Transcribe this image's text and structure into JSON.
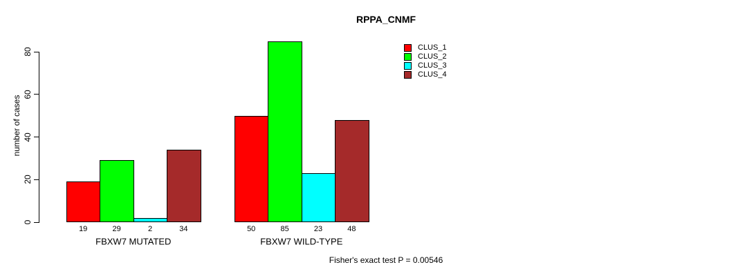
{
  "chart_data": {
    "type": "bar",
    "title": "RPPA_CNMF",
    "xlabel": "",
    "ylabel": "number of cases",
    "ylim": [
      0,
      85
    ],
    "yticks": [
      0,
      20,
      40,
      60,
      80
    ],
    "grid": false,
    "legend_position": "top-right",
    "groups": [
      "FBXW7 MUTATED",
      "FBXW7 WILD-TYPE"
    ],
    "series": [
      {
        "name": "CLUS_1",
        "color": "#FF0000",
        "values": [
          19,
          50
        ]
      },
      {
        "name": "CLUS_2",
        "color": "#00FF00",
        "values": [
          29,
          85
        ]
      },
      {
        "name": "CLUS_3",
        "color": "#00FFFF",
        "values": [
          2,
          23
        ]
      },
      {
        "name": "CLUS_4",
        "color": "#A52A2A",
        "values": [
          34,
          48
        ]
      }
    ],
    "bar_value_labels": [
      [
        19,
        29,
        2,
        34
      ],
      [
        50,
        85,
        23,
        48
      ]
    ],
    "annotation": "Fisher's exact test P = 0.00546"
  }
}
